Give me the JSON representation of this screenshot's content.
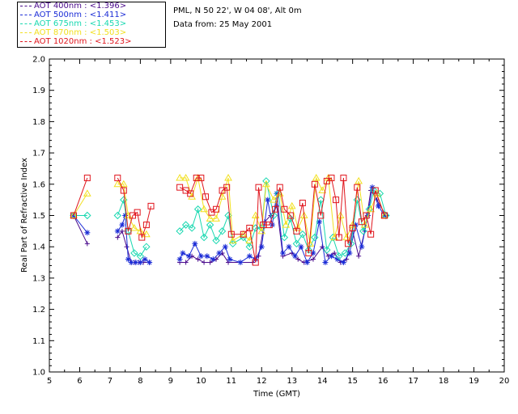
{
  "header": {
    "site": "PML, N 50 22', W 04 08', Alt 0m",
    "date": "Data from: 25 May 2001"
  },
  "legend": [
    {
      "label": "AOT  400nm : <1.396>",
      "color": "#4a0a8c"
    },
    {
      "label": "AOT  500nm : <1.411>",
      "color": "#1a2bd6"
    },
    {
      "label": "AOT  675nm : <1.453>",
      "color": "#18d8b0"
    },
    {
      "label": "AOT  870nm : <1.503>",
      "color": "#f2e020"
    },
    {
      "label": "AOT 1020nm : <1.523>",
      "color": "#e0141c"
    }
  ],
  "chart_data": {
    "type": "scatter",
    "title": "",
    "xlabel": "Time (GMT)",
    "ylabel": "Real Part of Refractive Index",
    "xlim": [
      5,
      20
    ],
    "ylim": [
      1.0,
      2.0
    ],
    "xticks": [
      "5",
      "6",
      "7",
      "8",
      "9",
      "10",
      "11",
      "12",
      "13",
      "14",
      "15",
      "16",
      "17",
      "18",
      "19",
      "20"
    ],
    "yticks": [
      "1.0",
      "1.1",
      "1.2",
      "1.3",
      "1.4",
      "1.5",
      "1.6",
      "1.7",
      "1.8",
      "1.9",
      "2.0"
    ],
    "series": [
      {
        "name": "AOT 400nm",
        "marker": "plus",
        "color": "#4a0a8c",
        "points": [
          [
            5.8,
            1.5
          ],
          [
            6.25,
            1.41
          ],
          [
            7.25,
            1.43
          ],
          [
            7.4,
            1.45
          ],
          [
            7.55,
            1.4
          ],
          [
            7.7,
            1.35
          ],
          [
            7.8,
            1.35
          ],
          [
            7.95,
            1.35
          ],
          [
            8.1,
            1.35
          ],
          [
            8.3,
            1.35
          ],
          [
            9.3,
            1.35
          ],
          [
            9.5,
            1.35
          ],
          [
            9.7,
            1.37
          ],
          [
            9.9,
            1.36
          ],
          [
            10.1,
            1.35
          ],
          [
            10.3,
            1.35
          ],
          [
            10.5,
            1.36
          ],
          [
            10.7,
            1.38
          ],
          [
            10.9,
            1.35
          ],
          [
            11.3,
            1.35
          ],
          [
            11.7,
            1.35
          ],
          [
            11.9,
            1.37
          ],
          [
            12.1,
            1.48
          ],
          [
            12.3,
            1.5
          ],
          [
            12.5,
            1.53
          ],
          [
            12.7,
            1.37
          ],
          [
            13.0,
            1.38
          ],
          [
            13.2,
            1.36
          ],
          [
            13.4,
            1.35
          ],
          [
            13.7,
            1.36
          ],
          [
            14.0,
            1.4
          ],
          [
            14.2,
            1.37
          ],
          [
            14.4,
            1.38
          ],
          [
            14.6,
            1.35
          ],
          [
            14.8,
            1.36
          ],
          [
            15.0,
            1.45
          ],
          [
            15.2,
            1.37
          ],
          [
            15.4,
            1.45
          ],
          [
            15.6,
            1.58
          ],
          [
            15.8,
            1.55
          ],
          [
            16.1,
            1.5
          ]
        ]
      },
      {
        "name": "AOT 500nm",
        "marker": "asterisk",
        "color": "#1a2bd6",
        "points": [
          [
            5.8,
            1.5
          ],
          [
            6.25,
            1.445
          ],
          [
            7.25,
            1.45
          ],
          [
            7.4,
            1.47
          ],
          [
            7.5,
            1.5
          ],
          [
            7.6,
            1.36
          ],
          [
            7.7,
            1.35
          ],
          [
            7.85,
            1.35
          ],
          [
            8.0,
            1.35
          ],
          [
            8.15,
            1.36
          ],
          [
            8.3,
            1.35
          ],
          [
            9.3,
            1.36
          ],
          [
            9.4,
            1.38
          ],
          [
            9.6,
            1.37
          ],
          [
            9.8,
            1.41
          ],
          [
            10.0,
            1.37
          ],
          [
            10.2,
            1.37
          ],
          [
            10.4,
            1.36
          ],
          [
            10.6,
            1.38
          ],
          [
            10.8,
            1.4
          ],
          [
            10.95,
            1.36
          ],
          [
            11.3,
            1.35
          ],
          [
            11.6,
            1.37
          ],
          [
            11.8,
            1.36
          ],
          [
            12.0,
            1.4
          ],
          [
            12.2,
            1.55
          ],
          [
            12.35,
            1.47
          ],
          [
            12.5,
            1.57
          ],
          [
            12.7,
            1.38
          ],
          [
            12.9,
            1.4
          ],
          [
            13.1,
            1.37
          ],
          [
            13.3,
            1.4
          ],
          [
            13.5,
            1.35
          ],
          [
            13.7,
            1.38
          ],
          [
            13.9,
            1.48
          ],
          [
            14.1,
            1.35
          ],
          [
            14.3,
            1.37
          ],
          [
            14.5,
            1.36
          ],
          [
            14.7,
            1.35
          ],
          [
            14.9,
            1.38
          ],
          [
            15.1,
            1.47
          ],
          [
            15.3,
            1.4
          ],
          [
            15.5,
            1.5
          ],
          [
            15.65,
            1.59
          ],
          [
            15.85,
            1.53
          ],
          [
            16.05,
            1.5
          ]
        ]
      },
      {
        "name": "AOT 675nm",
        "marker": "diamond",
        "color": "#18d8b0",
        "points": [
          [
            5.8,
            1.5
          ],
          [
            6.25,
            1.5
          ],
          [
            7.25,
            1.5
          ],
          [
            7.45,
            1.55
          ],
          [
            7.6,
            1.45
          ],
          [
            7.8,
            1.38
          ],
          [
            8.0,
            1.37
          ],
          [
            8.2,
            1.4
          ],
          [
            9.3,
            1.45
          ],
          [
            9.5,
            1.47
          ],
          [
            9.7,
            1.46
          ],
          [
            9.9,
            1.52
          ],
          [
            10.1,
            1.43
          ],
          [
            10.3,
            1.47
          ],
          [
            10.5,
            1.42
          ],
          [
            10.7,
            1.45
          ],
          [
            10.9,
            1.5
          ],
          [
            11.05,
            1.41
          ],
          [
            11.4,
            1.43
          ],
          [
            11.6,
            1.4
          ],
          [
            11.8,
            1.46
          ],
          [
            12.0,
            1.46
          ],
          [
            12.15,
            1.61
          ],
          [
            12.4,
            1.5
          ],
          [
            12.55,
            1.57
          ],
          [
            12.75,
            1.43
          ],
          [
            12.95,
            1.49
          ],
          [
            13.15,
            1.41
          ],
          [
            13.35,
            1.44
          ],
          [
            13.55,
            1.39
          ],
          [
            13.75,
            1.43
          ],
          [
            13.95,
            1.55
          ],
          [
            14.15,
            1.39
          ],
          [
            14.35,
            1.43
          ],
          [
            14.55,
            1.37
          ],
          [
            14.75,
            1.38
          ],
          [
            14.95,
            1.41
          ],
          [
            15.15,
            1.55
          ],
          [
            15.35,
            1.45
          ],
          [
            15.55,
            1.52
          ],
          [
            15.7,
            1.58
          ],
          [
            15.9,
            1.57
          ],
          [
            16.1,
            1.5
          ]
        ]
      },
      {
        "name": "AOT 870nm",
        "marker": "triangle",
        "color": "#f2e020",
        "points": [
          [
            5.8,
            1.5
          ],
          [
            6.25,
            1.57
          ],
          [
            7.25,
            1.6
          ],
          [
            7.45,
            1.6
          ],
          [
            7.6,
            1.5
          ],
          [
            7.8,
            1.46
          ],
          [
            8.0,
            1.45
          ],
          [
            8.2,
            1.44
          ],
          [
            9.3,
            1.62
          ],
          [
            9.5,
            1.62
          ],
          [
            9.7,
            1.56
          ],
          [
            9.9,
            1.62
          ],
          [
            10.1,
            1.52
          ],
          [
            10.3,
            1.49
          ],
          [
            10.5,
            1.49
          ],
          [
            10.7,
            1.56
          ],
          [
            10.9,
            1.62
          ],
          [
            11.05,
            1.42
          ],
          [
            11.4,
            1.44
          ],
          [
            11.6,
            1.42
          ],
          [
            11.8,
            1.5
          ],
          [
            12.0,
            1.45
          ],
          [
            12.15,
            1.6
          ],
          [
            12.4,
            1.55
          ],
          [
            12.6,
            1.57
          ],
          [
            12.8,
            1.47
          ],
          [
            13.0,
            1.53
          ],
          [
            13.2,
            1.46
          ],
          [
            13.4,
            1.5
          ],
          [
            13.6,
            1.41
          ],
          [
            13.8,
            1.62
          ],
          [
            14.0,
            1.58
          ],
          [
            14.2,
            1.62
          ],
          [
            14.4,
            1.43
          ],
          [
            14.6,
            1.5
          ],
          [
            14.8,
            1.43
          ],
          [
            15.0,
            1.47
          ],
          [
            15.2,
            1.61
          ],
          [
            15.4,
            1.47
          ],
          [
            15.6,
            1.52
          ],
          [
            15.8,
            1.57
          ],
          [
            16.05,
            1.5
          ]
        ]
      },
      {
        "name": "AOT 1020nm",
        "marker": "square",
        "color": "#e0141c",
        "points": [
          [
            5.8,
            1.5
          ],
          [
            6.25,
            1.62
          ],
          [
            7.25,
            1.62
          ],
          [
            7.45,
            1.58
          ],
          [
            7.6,
            1.45
          ],
          [
            7.75,
            1.5
          ],
          [
            7.9,
            1.51
          ],
          [
            8.05,
            1.43
          ],
          [
            8.2,
            1.47
          ],
          [
            8.35,
            1.53
          ],
          [
            9.3,
            1.59
          ],
          [
            9.5,
            1.58
          ],
          [
            9.65,
            1.57
          ],
          [
            9.85,
            1.62
          ],
          [
            10.0,
            1.62
          ],
          [
            10.15,
            1.56
          ],
          [
            10.35,
            1.51
          ],
          [
            10.5,
            1.52
          ],
          [
            10.7,
            1.58
          ],
          [
            10.85,
            1.59
          ],
          [
            11.0,
            1.44
          ],
          [
            11.4,
            1.44
          ],
          [
            11.6,
            1.46
          ],
          [
            11.8,
            1.35
          ],
          [
            11.9,
            1.59
          ],
          [
            12.05,
            1.47
          ],
          [
            12.25,
            1.47
          ],
          [
            12.45,
            1.52
          ],
          [
            12.6,
            1.59
          ],
          [
            12.75,
            1.52
          ],
          [
            12.95,
            1.5
          ],
          [
            13.15,
            1.45
          ],
          [
            13.35,
            1.54
          ],
          [
            13.55,
            1.38
          ],
          [
            13.75,
            1.6
          ],
          [
            13.95,
            1.5
          ],
          [
            14.15,
            1.61
          ],
          [
            14.3,
            1.62
          ],
          [
            14.45,
            1.55
          ],
          [
            14.55,
            1.43
          ],
          [
            14.7,
            1.62
          ],
          [
            14.85,
            1.41
          ],
          [
            15.0,
            1.46
          ],
          [
            15.15,
            1.59
          ],
          [
            15.3,
            1.48
          ],
          [
            15.45,
            1.5
          ],
          [
            15.6,
            1.44
          ],
          [
            15.75,
            1.58
          ],
          [
            16.05,
            1.5
          ]
        ]
      }
    ]
  }
}
